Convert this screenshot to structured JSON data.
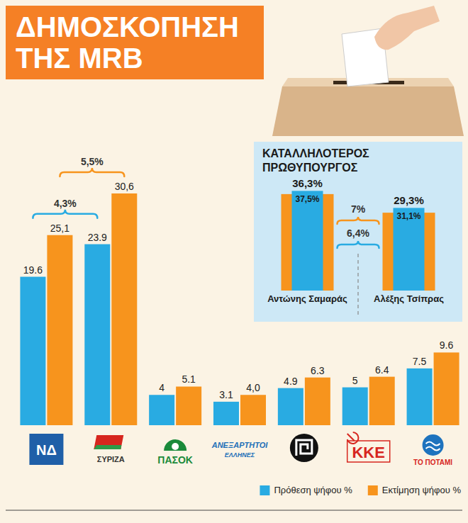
{
  "chart_data": [
    {
      "type": "bar",
      "title": "ΔΗΜΟΣΚΟΠΗΣΗ ΤΗΣ MRB",
      "categories": [
        "ΝΔ",
        "ΣΥΡΙΖΑ",
        "ΠΑΣΟΚ",
        "ΑΝΕΞΑΡΤΗΤΟΙ ΕΛΛΗΝΕΣ",
        null,
        "ΚΚΕ",
        "ΤΟ ΠΟΤΑΜΙ"
      ],
      "series": [
        {
          "name": "Πρόθεση ψήφου %",
          "color": "#29abe2",
          "values": [
            19.6,
            23.9,
            4,
            3.1,
            4.9,
            5,
            7.5
          ],
          "value_labels": [
            "19.6",
            "23.9",
            "4",
            "3.1",
            "4.9",
            "5",
            "7.5"
          ]
        },
        {
          "name": "Εκτίμηση ψήφου %",
          "color": "#f7941d",
          "values": [
            25.1,
            30.6,
            5.1,
            4.0,
            6.3,
            6.4,
            9.6
          ],
          "value_labels": [
            "25,1",
            "30,6",
            "5.1",
            "4,0",
            "6.3",
            "6.4",
            "9.6"
          ]
        }
      ],
      "ylim": [
        0,
        32
      ],
      "data_labels": true,
      "tick_labels": "x",
      "grid": false,
      "legend": "bottom-right",
      "annotations": [
        {
          "text": "4,3%",
          "color": "#29abe2",
          "categories": [
            "ΝΔ",
            "ΣΥΡΙΖΑ"
          ]
        },
        {
          "text": "5,5%",
          "color": "#f7941d",
          "categories": [
            "ΝΔ",
            "ΣΥΡΙΖΑ"
          ]
        }
      ]
    },
    {
      "type": "bar",
      "title": "ΚΑΤΑΛΛΗΛΟΤΕΡΟΣ ΠΡΩΘΥΠΟΥΡΓΟΣ",
      "categories": [
        "Αντώνης Σαμαράς",
        "Αλέξης Τσίπρας"
      ],
      "series": [
        {
          "color": "#f7941d",
          "values": [
            36.3,
            29.3
          ],
          "value_labels": [
            "36,3%",
            "29,3%"
          ]
        },
        {
          "color": "#29abe2",
          "values": [
            37.5,
            31.1
          ],
          "value_labels": [
            "37,5%",
            "31,1%"
          ]
        }
      ],
      "ylim": [
        0,
        40
      ],
      "data_labels": true,
      "tick_labels": "x",
      "grid": false,
      "annotations": [
        {
          "text": "7%",
          "color": "#f7941d",
          "categories": [
            "Αντώνης Σαμαράς",
            "Αλέξης Τσίπρας"
          ]
        },
        {
          "text": "6,4%",
          "color": "#29abe2",
          "categories": [
            "Αντώνης Σαμαράς",
            "Αλέξης Τσίπρας"
          ]
        }
      ]
    }
  ]
}
